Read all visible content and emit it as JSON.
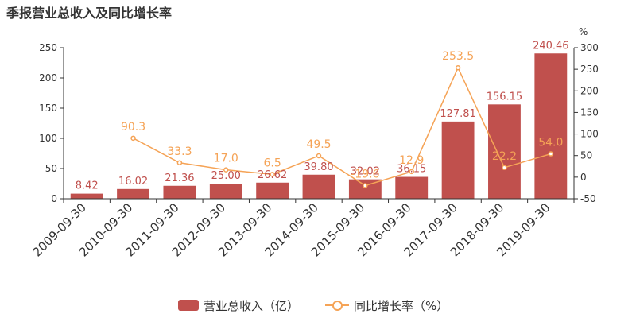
{
  "title": "季报营业总收入及同比增长率",
  "colors": {
    "bar": "#c0504d",
    "line": "#f5a356",
    "bar_label": "#c0504d",
    "line_label": "#f5a356",
    "axis_text": "#333333"
  },
  "chart_data": {
    "type": "bar+line",
    "categories": [
      "2009-09-30",
      "2010-09-30",
      "2011-09-30",
      "2012-09-30",
      "2013-09-30",
      "2014-09-30",
      "2015-09-30",
      "2016-09-30",
      "2017-09-30",
      "2018-09-30",
      "2019-09-30"
    ],
    "series": [
      {
        "name": "营业总收入（亿）",
        "type": "bar",
        "axis": "left",
        "values": [
          8.42,
          16.02,
          21.36,
          25.0,
          26.62,
          39.8,
          32.02,
          36.15,
          127.81,
          156.15,
          240.46
        ],
        "labels": [
          "8.42",
          "16.02",
          "21.36",
          "25.00",
          "26.62",
          "39.80",
          "32.02",
          "36.15",
          "127.81",
          "156.15",
          "240.46"
        ]
      },
      {
        "name": "同比增长率（%）",
        "type": "line",
        "axis": "right",
        "values": [
          null,
          90.3,
          33.3,
          17.0,
          6.5,
          49.5,
          -19.6,
          12.9,
          253.5,
          22.2,
          54.0
        ],
        "labels": [
          "",
          "90.3",
          "33.3",
          "17.0",
          "6.5",
          "49.5",
          "-19.6",
          "12.9",
          "253.5",
          "22.2",
          "54.0"
        ]
      }
    ],
    "left_axis": {
      "min": 0,
      "max": 250,
      "ticks": [
        0,
        50,
        100,
        150,
        200,
        250
      ]
    },
    "right_axis": {
      "min": -50,
      "max": 300,
      "ticks": [
        -50,
        0,
        50,
        100,
        150,
        200,
        250,
        300
      ],
      "unit": "%"
    },
    "legend_position": "bottom",
    "grid": false
  }
}
